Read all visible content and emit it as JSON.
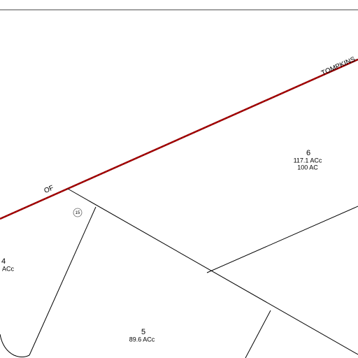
{
  "roads": [
    {
      "label": "TOMPKINS"
    },
    {
      "label": "OF"
    }
  ],
  "parcels": [
    {
      "number": "6",
      "area": "117.1 ACc",
      "assessed": "100 AC"
    },
    {
      "number": "5",
      "area": "89.6 ACc"
    },
    {
      "number": "4",
      "area": "ACc"
    }
  ],
  "markers": [
    {
      "label": "15"
    }
  ]
}
